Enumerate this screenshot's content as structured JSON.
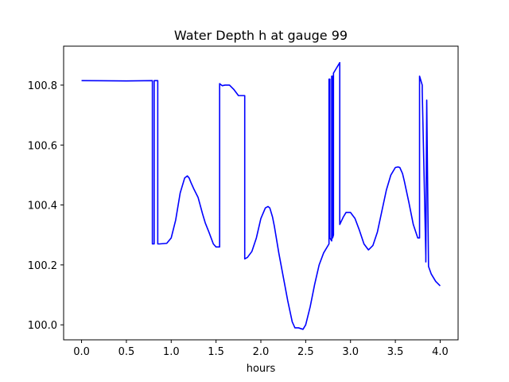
{
  "chart_data": {
    "type": "line",
    "title": "Water Depth h at gauge 99",
    "xlabel": "hours",
    "ylabel": "",
    "xlim": [
      -0.2,
      4.2
    ],
    "ylim": [
      99.95,
      100.93
    ],
    "xticks": [
      0.0,
      0.5,
      1.0,
      1.5,
      2.0,
      2.5,
      3.0,
      3.5,
      4.0
    ],
    "xtick_labels": [
      "0.0",
      "0.5",
      "1.0",
      "1.5",
      "2.0",
      "2.5",
      "3.0",
      "3.5",
      "4.0"
    ],
    "yticks": [
      100.0,
      100.2,
      100.4,
      100.6,
      100.8
    ],
    "ytick_labels": [
      "100.0",
      "100.2",
      "100.4",
      "100.6",
      "100.8"
    ],
    "grid": false,
    "series": [
      {
        "color": "#0000ff",
        "x": [
          0.0,
          0.5,
          0.79,
          0.79,
          0.81,
          0.81,
          0.85,
          0.85,
          0.87,
          0.87,
          0.95,
          1.0,
          1.05,
          1.1,
          1.15,
          1.18,
          1.2,
          1.22,
          1.25,
          1.3,
          1.35,
          1.38,
          1.42,
          1.47,
          1.5,
          1.53,
          1.54,
          1.54,
          1.57,
          1.6,
          1.65,
          1.7,
          1.75,
          1.8,
          1.82,
          1.82,
          1.85,
          1.9,
          1.95,
          2.0,
          2.05,
          2.08,
          2.1,
          2.13,
          2.15,
          2.2,
          2.25,
          2.3,
          2.35,
          2.38,
          2.42,
          2.47,
          2.5,
          2.55,
          2.6,
          2.65,
          2.7,
          2.76,
          2.76,
          2.77,
          2.77,
          2.79,
          2.79,
          2.8,
          2.8,
          2.81,
          2.81,
          2.82,
          2.88,
          2.88,
          2.92,
          2.95,
          3.0,
          3.05,
          3.1,
          3.15,
          3.2,
          3.25,
          3.3,
          3.35,
          3.4,
          3.45,
          3.5,
          3.53,
          3.55,
          3.58,
          3.6,
          3.65,
          3.7,
          3.75,
          3.77,
          3.77,
          3.8,
          3.8,
          3.84,
          3.84,
          3.85,
          3.85,
          3.87,
          3.9,
          3.95,
          4.0
        ],
        "y": [
          100.815,
          100.814,
          100.815,
          100.27,
          100.27,
          100.815,
          100.815,
          100.27,
          100.27,
          100.27,
          100.272,
          100.29,
          100.35,
          100.44,
          100.49,
          100.497,
          100.49,
          100.475,
          100.455,
          100.425,
          100.37,
          100.34,
          100.31,
          100.27,
          100.26,
          100.26,
          100.26,
          100.805,
          100.798,
          100.8,
          100.8,
          100.785,
          100.765,
          100.765,
          100.765,
          100.22,
          100.225,
          100.245,
          100.29,
          100.355,
          100.39,
          100.395,
          100.39,
          100.36,
          100.33,
          100.24,
          100.16,
          100.08,
          100.01,
          99.99,
          99.99,
          99.985,
          100.0,
          100.06,
          100.135,
          100.2,
          100.24,
          100.27,
          100.82,
          100.82,
          100.29,
          100.28,
          100.83,
          100.83,
          100.29,
          100.3,
          100.84,
          100.845,
          100.875,
          100.335,
          100.36,
          100.375,
          100.375,
          100.355,
          100.315,
          100.27,
          100.25,
          100.265,
          100.31,
          100.38,
          100.45,
          100.5,
          100.525,
          100.527,
          100.525,
          100.505,
          100.48,
          100.41,
          100.335,
          100.29,
          100.29,
          100.83,
          100.8,
          100.78,
          100.23,
          100.21,
          100.75,
          100.75,
          100.195,
          100.17,
          100.145,
          100.13
        ]
      }
    ]
  }
}
